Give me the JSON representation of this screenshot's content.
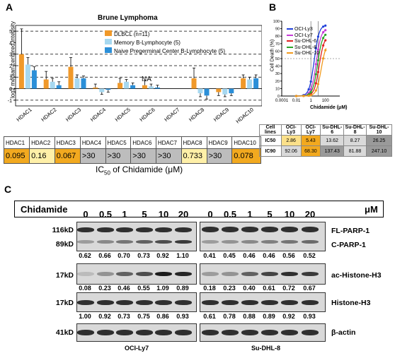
{
  "panelA": {
    "label": "A",
    "title": "Brune Lymphoma",
    "ylabel": "log2 median-centered intensity",
    "na_label": "NA",
    "ic50_caption_pre": "IC",
    "ic50_caption_sub": "50",
    "ic50_caption_post": " of Chidamide (μM)",
    "table_headers": [
      "HDAC1",
      "HDAC2",
      "HDAC3",
      "HDAC4",
      "HDAC5",
      "HDAC6",
      "HDAC7",
      "HDAC8",
      "HDAC9",
      "HDAC10"
    ],
    "table_values": [
      "0.095",
      "0.16",
      "0.067",
      ">30",
      ">30",
      ">30",
      ">30",
      "0.733",
      ">30",
      "0.078"
    ],
    "table_colors": [
      "#f2a91f",
      "#fff0a8",
      "#f2a91f",
      "#bdbdbd",
      "#bdbdbd",
      "#bdbdbd",
      "#bdbdbd",
      "#fff0a8",
      "#bdbdbd",
      "#f2a91f"
    ]
  },
  "panelB": {
    "label": "B",
    "ylabel": "Cell Death (%)",
    "xlabel": "Chidamide (μM)",
    "row_cells": "Cell lines",
    "row_ic50": "IC50",
    "row_ic90": "IC90",
    "lines": [
      "OCI-Ly3",
      "OCI-Ly7",
      "Su-DHL-6",
      "Su-DHL-8",
      "Su-DHL-10"
    ],
    "ic50": [
      "2.86",
      "5.43",
      "13.62",
      "8.27",
      "26.25"
    ],
    "ic90": [
      "92.06",
      "68.30",
      "137.43",
      "81.88",
      "247.10"
    ],
    "ic50_colors": [
      "#fbe08a",
      "#f2a91f",
      "#d9d9d9",
      "#d9d9d9",
      "#9a9a9a"
    ],
    "ic90_colors": [
      "#d9d9d9",
      "#f2a91f",
      "#9a9a9a",
      "#d9d9d9",
      "#9a9a9a"
    ]
  },
  "panelC": {
    "label": "C",
    "header": "Chidamide",
    "doses": [
      "0",
      "0.5",
      "1",
      "5",
      "10",
      "20",
      "0",
      "0.5",
      "1",
      "5",
      "10",
      "20"
    ],
    "unit": "μM",
    "left_cell": "OCI-Ly7",
    "right_cell": "Su-DHL-8",
    "mw": [
      "116kD",
      "89kD",
      "17kD",
      "17kD",
      "41kD"
    ],
    "proteins": [
      "FL-PARP-1",
      "C-PARP-1",
      "ac-Histone-H3",
      "Histone-H3",
      "β-actin"
    ],
    "parp_left": [
      "0.62",
      "0.66",
      "0.70",
      "0.73",
      "0.92",
      "1.10"
    ],
    "parp_right": [
      "0.41",
      "0.45",
      "0.46",
      "0.46",
      "0.56",
      "0.52"
    ],
    "ac_left": [
      "0.08",
      "0.23",
      "0.46",
      "0.55",
      "1.09",
      "0.89"
    ],
    "ac_right": [
      "0.18",
      "0.23",
      "0.40",
      "0.61",
      "0.72",
      "0.67"
    ],
    "h3_left": [
      "1.00",
      "0.92",
      "0.73",
      "0.75",
      "0.86",
      "0.93"
    ],
    "h3_right": [
      "0.61",
      "0.78",
      "0.88",
      "0.89",
      "0.92",
      "0.93"
    ]
  },
  "chart_data": [
    {
      "type": "bar",
      "title": "Brune Lymphoma",
      "ylabel": "log2 median-centered intensity",
      "ylim": [
        -1.5,
        5.5
      ],
      "categories": [
        "HDAC1",
        "HDAC2",
        "HDAC3",
        "HDAC4",
        "HDAC5",
        "HDAC6",
        "HDAC7",
        "HDAC8",
        "HDAC9",
        "HDAC10"
      ],
      "series": [
        {
          "name": "DLBCL (n=11)",
          "color": "#f0992a",
          "values": [
            3.0,
            0.8,
            1.9,
            0.1,
            0.5,
            0.3,
            null,
            0.9,
            -0.3,
            0.9
          ],
          "err": [
            2.2,
            0.7,
            0.8,
            0.3,
            0.4,
            0.4,
            null,
            0.9,
            0.3,
            0.3
          ]
        },
        {
          "name": "Memory B-Lymphocyte (5)",
          "color": "#a6d8f0",
          "values": [
            2.1,
            0.6,
            0.9,
            -0.3,
            0.6,
            0.2,
            null,
            -0.4,
            -0.5,
            0.8
          ],
          "err": [
            0.6,
            0.3,
            0.3,
            0.2,
            0.2,
            0.2,
            null,
            0.3,
            0.2,
            0.2
          ]
        },
        {
          "name": "Naive Pregerminal Center B-Lymphocyte (5)",
          "color": "#2b8fd8",
          "values": [
            1.6,
            0.3,
            0.9,
            -0.1,
            0.3,
            0.1,
            null,
            -0.6,
            -0.4,
            0.9
          ],
          "err": [
            0.3,
            0.3,
            0.2,
            0.2,
            0.2,
            0.2,
            null,
            0.3,
            0.2,
            0.3
          ]
        }
      ]
    },
    {
      "type": "line",
      "ylabel": "Cell Death (%)",
      "xlabel": "Chidamide (μM)",
      "xscale": "log",
      "xlim": [
        0.0001,
        1000
      ],
      "ylim": [
        0,
        100
      ],
      "xticks": [
        "0.0001",
        "0.01",
        "1",
        "100"
      ],
      "yticks": [
        "0",
        "10",
        "20",
        "30",
        "40",
        "50",
        "60",
        "70",
        "80",
        "90",
        "100"
      ],
      "series": [
        {
          "name": "OCI-Ly3",
          "color": "#1f3fd9",
          "ic50": 2.86,
          "top": 95
        },
        {
          "name": "OCI-Ly7",
          "color": "#c63ad6",
          "ic50": 5.43,
          "top": 90
        },
        {
          "name": "Su-DHL-6",
          "color": "#e02020",
          "ic50": 13.62,
          "top": 80
        },
        {
          "name": "Su-DHL-8",
          "color": "#2aa52a",
          "ic50": 8.27,
          "top": 85
        },
        {
          "name": "Su-DHL-10",
          "color": "#f29a1d",
          "ic50": 26.25,
          "top": 72
        }
      ]
    }
  ]
}
